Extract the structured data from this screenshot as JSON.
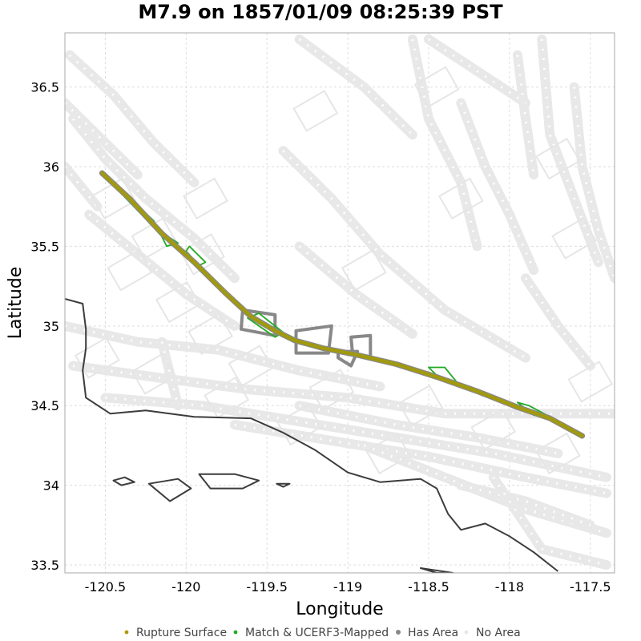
{
  "title": "M7.9 on 1857/01/09 08:25:39 PST",
  "axes": {
    "xlabel": "Longitude",
    "ylabel": "Latitude",
    "xlim": [
      -120.75,
      -117.35
    ],
    "ylim": [
      33.45,
      36.84
    ],
    "xticks": [
      -120.5,
      -120,
      -119.5,
      -119,
      -118.5,
      -118,
      -117.5
    ],
    "yticks": [
      33.5,
      34,
      34.5,
      35,
      35.5,
      36,
      36.5
    ],
    "xtick_labels": [
      "-120.5",
      "-120",
      "-119.5",
      "-119",
      "-118.5",
      "-118",
      "-117.5"
    ],
    "ytick_labels": [
      "33.5",
      "34",
      "34.5",
      "35",
      "35.5",
      "36",
      "36.5"
    ],
    "grid": true
  },
  "legend": {
    "placement": "bottom-center",
    "items": [
      {
        "label": "Rupture Surface",
        "color": "#b09600"
      },
      {
        "label": "Match & UCERF3-Mapped",
        "color": "#22aa22"
      },
      {
        "label": "Has Area",
        "color": "#888888"
      },
      {
        "label": "No Area",
        "color": "#e6e6e6"
      }
    ]
  },
  "colors": {
    "rupture": "#a19a0e",
    "match": "#22aa22",
    "has_area": "#888888",
    "no_area": "#e8e8e8",
    "coastline": "#3c3c3c",
    "grid": "#dddddd"
  },
  "chart_data": {
    "type": "map",
    "title": "M7.9 on 1857/01/09 08:25:39 PST",
    "xlabel": "Longitude",
    "ylabel": "Latitude",
    "rupture_trace": [
      [
        -120.52,
        35.96
      ],
      [
        -120.35,
        35.8
      ],
      [
        -120.15,
        35.58
      ],
      [
        -119.95,
        35.4
      ],
      [
        -119.75,
        35.2
      ],
      [
        -119.6,
        35.06
      ],
      [
        -119.45,
        34.97
      ],
      [
        -119.33,
        34.91
      ],
      [
        -119.15,
        34.86
      ],
      [
        -118.95,
        34.82
      ],
      [
        -118.7,
        34.76
      ],
      [
        -118.45,
        34.68
      ],
      [
        -118.2,
        34.59
      ],
      [
        -117.95,
        34.49
      ],
      [
        -117.75,
        34.42
      ],
      [
        -117.55,
        34.31
      ]
    ],
    "match_polygons": [
      [
        [
          -120.5,
          35.95
        ],
        [
          -120.35,
          35.8
        ],
        [
          -120.2,
          35.66
        ],
        [
          -120.12,
          35.5
        ],
        [
          -120.05,
          35.52
        ],
        [
          -120.2,
          35.62
        ],
        [
          -120.4,
          35.83
        ],
        [
          -120.5,
          35.95
        ]
      ],
      [
        [
          -120.0,
          35.47
        ],
        [
          -119.92,
          35.38
        ],
        [
          -119.88,
          35.4
        ],
        [
          -119.98,
          35.5
        ],
        [
          -120.0,
          35.47
        ]
      ],
      [
        [
          -119.62,
          35.05
        ],
        [
          -119.45,
          34.93
        ],
        [
          -119.4,
          34.96
        ],
        [
          -119.55,
          35.08
        ],
        [
          -119.62,
          35.05
        ]
      ],
      [
        [
          -118.5,
          34.74
        ],
        [
          -118.4,
          34.74
        ],
        [
          -118.32,
          34.64
        ],
        [
          -118.42,
          34.66
        ],
        [
          -118.5,
          34.74
        ]
      ],
      [
        [
          -117.95,
          34.52
        ],
        [
          -117.85,
          34.44
        ],
        [
          -117.75,
          34.43
        ],
        [
          -117.88,
          34.5
        ],
        [
          -117.95,
          34.52
        ]
      ]
    ],
    "has_area_polygons": [
      [
        [
          -119.65,
          35.1
        ],
        [
          -119.45,
          35.07
        ],
        [
          -119.45,
          34.94
        ],
        [
          -119.66,
          34.98
        ],
        [
          -119.65,
          35.1
        ]
      ],
      [
        [
          -119.32,
          34.97
        ],
        [
          -119.1,
          35.0
        ],
        [
          -119.12,
          34.83
        ],
        [
          -119.32,
          34.83
        ],
        [
          -119.32,
          34.97
        ]
      ],
      [
        [
          -119.06,
          34.84
        ],
        [
          -118.94,
          34.84
        ],
        [
          -118.98,
          34.75
        ],
        [
          -119.06,
          34.8
        ],
        [
          -119.06,
          34.84
        ]
      ],
      [
        [
          -118.98,
          34.93
        ],
        [
          -118.86,
          34.94
        ],
        [
          -118.86,
          34.8
        ],
        [
          -118.97,
          34.82
        ],
        [
          -118.98,
          34.93
        ]
      ]
    ],
    "coastline": [
      [
        -120.75,
        35.17
      ],
      [
        -120.64,
        35.14
      ],
      [
        -120.62,
        34.98
      ],
      [
        -120.62,
        34.86
      ],
      [
        -120.64,
        34.72
      ],
      [
        -120.62,
        34.55
      ],
      [
        -120.47,
        34.45
      ],
      [
        -120.25,
        34.47
      ],
      [
        -119.95,
        34.43
      ],
      [
        -119.6,
        34.42
      ],
      [
        -119.4,
        34.33
      ],
      [
        -119.2,
        34.22
      ],
      [
        -119.0,
        34.08
      ],
      [
        -118.8,
        34.02
      ],
      [
        -118.55,
        34.04
      ],
      [
        -118.45,
        33.98
      ],
      [
        -118.38,
        33.82
      ],
      [
        -118.3,
        33.72
      ],
      [
        -118.15,
        33.76
      ],
      [
        -118.0,
        33.68
      ],
      [
        -117.85,
        33.58
      ],
      [
        -117.7,
        33.46
      ]
    ],
    "islands": [
      [
        [
          -120.45,
          34.03
        ],
        [
          -120.38,
          34.05
        ],
        [
          -120.32,
          34.02
        ],
        [
          -120.4,
          34.0
        ],
        [
          -120.45,
          34.03
        ]
      ],
      [
        [
          -120.23,
          34.01
        ],
        [
          -120.05,
          34.04
        ],
        [
          -119.97,
          33.98
        ],
        [
          -120.1,
          33.9
        ],
        [
          -120.23,
          34.01
        ]
      ],
      [
        [
          -119.92,
          34.07
        ],
        [
          -119.7,
          34.07
        ],
        [
          -119.55,
          34.03
        ],
        [
          -119.65,
          33.98
        ],
        [
          -119.85,
          33.98
        ],
        [
          -119.92,
          34.07
        ]
      ],
      [
        [
          -119.44,
          34.01
        ],
        [
          -119.36,
          34.01
        ],
        [
          -119.4,
          33.99
        ],
        [
          -119.44,
          34.01
        ]
      ],
      [
        [
          -118.55,
          33.48
        ],
        [
          -118.45,
          33.45
        ],
        [
          -118.35,
          33.45
        ],
        [
          -118.55,
          33.48
        ]
      ]
    ]
  }
}
